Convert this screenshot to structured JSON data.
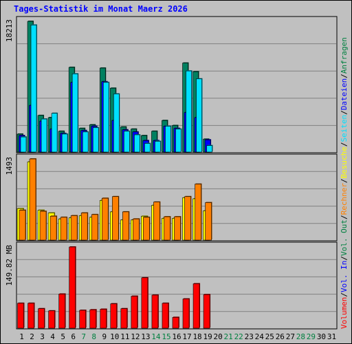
{
  "chart_data": {
    "type": "bar",
    "title": "Tages-Statistik im Monat Maerz 2026",
    "title_color": "#0000ff",
    "categories": [
      "1",
      "2",
      "3",
      "4",
      "5",
      "6",
      "7",
      "8",
      "9",
      "10",
      "11",
      "12",
      "13",
      "14",
      "15",
      "16",
      "17",
      "18",
      "19",
      "20",
      "21",
      "22",
      "23",
      "24",
      "25",
      "26",
      "27",
      "28",
      "29",
      "30",
      "31"
    ],
    "category_colors": [
      "#000000",
      "#000000",
      "#000000",
      "#000000",
      "#000000",
      "#000000",
      "#008040",
      "#008040",
      "#000000",
      "#000000",
      "#000000",
      "#000000",
      "#000000",
      "#008040",
      "#008040",
      "#000000",
      "#000000",
      "#000000",
      "#000000",
      "#000000",
      "#008040",
      "#008040",
      "#000000",
      "#000000",
      "#000000",
      "#000000",
      "#000000",
      "#008040",
      "#008040",
      "#000000",
      "#000000"
    ],
    "panels": [
      {
        "max_label": "18213",
        "ymax": 18213,
        "series": [
          {
            "name": "Anfragen",
            "color": "#008060",
            "values": [
              2500,
              18213,
              5100,
              4800,
              2900,
              11800,
              3300,
              3800,
              11700,
              8900,
              3500,
              3200,
              2300,
              2900,
              4400,
              3700,
              12400,
              11200,
              1800,
              null,
              null,
              null,
              null,
              null,
              null,
              null,
              null,
              null,
              null,
              null,
              null
            ]
          },
          {
            "name": "Dateien",
            "color": "#0000ff",
            "values": [
              2300,
              6500,
              4300,
              3200,
              2600,
              9700,
              3000,
              3600,
              9800,
              4400,
              3100,
              2800,
              1600,
              1600,
              3600,
              3300,
              5500,
              4800,
              1700,
              null,
              null,
              null,
              null,
              null,
              null,
              null,
              null,
              null,
              null,
              null,
              null
            ]
          },
          {
            "name": "Seiten",
            "color": "#00e0ff",
            "values": [
              2100,
              17700,
              4600,
              5400,
              2500,
              10900,
              2800,
              3400,
              9700,
              8100,
              2900,
              2400,
              1200,
              1500,
              3600,
              3200,
              11300,
              10200,
              900,
              null,
              null,
              null,
              null,
              null,
              null,
              null,
              null,
              null,
              null,
              null,
              null
            ]
          }
        ]
      },
      {
        "max_label": "1493",
        "ymax": 1493,
        "series": [
          {
            "name": "Besuche",
            "color": "#ffff00",
            "values": [
              580,
              1440,
              550,
              500,
              390,
              410,
              450,
              420,
              730,
              520,
              370,
              370,
              440,
              640,
              400,
              400,
              780,
              760,
              540,
              null,
              null,
              null,
              null,
              null,
              null,
              null,
              null,
              null,
              null,
              null,
              null
            ]
          },
          {
            "name": "Rechner",
            "color": "#ff8000",
            "values": [
              550,
              1493,
              530,
              440,
              420,
              450,
              500,
              470,
              770,
              800,
              520,
              390,
              420,
              700,
              430,
              430,
              800,
              1030,
              690,
              null,
              null,
              null,
              null,
              null,
              null,
              null,
              null,
              null,
              null,
              null,
              null
            ]
          }
        ]
      },
      {
        "max_label": "149.82 MB",
        "ymax": 149.82,
        "series": [
          {
            "name": "Vol. Out",
            "color": "#008040",
            "values": [
              null,
              null,
              null,
              null,
              null,
              null,
              null,
              null,
              null,
              null,
              null,
              null,
              null,
              null,
              null,
              null,
              null,
              null,
              null,
              null,
              null,
              null,
              null,
              null,
              null,
              null,
              null,
              null,
              null,
              null,
              null
            ]
          },
          {
            "name": "Vol. In",
            "color": "#0000ff",
            "values": [
              null,
              null,
              null,
              null,
              null,
              null,
              null,
              null,
              null,
              null,
              null,
              null,
              null,
              null,
              null,
              null,
              null,
              null,
              null,
              null,
              null,
              null,
              null,
              null,
              null,
              null,
              null,
              null,
              null,
              null,
              null
            ]
          },
          {
            "name": "Volumen",
            "color": "#ff0000",
            "values": [
              46,
              46,
              36,
              32,
              63,
              149.82,
              33,
              34,
              35,
              45,
              36,
              59,
              93,
              61,
              46,
              20,
              54,
              82,
              62,
              null,
              null,
              null,
              null,
              null,
              null,
              null,
              null,
              null,
              null,
              null,
              null
            ]
          }
        ]
      }
    ],
    "legend": [
      {
        "text": "Volumen",
        "color": "#ff0000"
      },
      {
        "text": "/",
        "color": "#000000"
      },
      {
        "text": "Vol. In",
        "color": "#0000ff"
      },
      {
        "text": "/",
        "color": "#000000"
      },
      {
        "text": "Vol. Out",
        "color": "#008040"
      },
      {
        "text": "/",
        "color": "#000000"
      },
      {
        "text": "Rechner",
        "color": "#ff8000"
      },
      {
        "text": "/",
        "color": "#000000"
      },
      {
        "text": "Besuche",
        "color": "#ffff00"
      },
      {
        "text": "/",
        "color": "#000000"
      },
      {
        "text": "Seiten",
        "color": "#00e0ff"
      },
      {
        "text": "/",
        "color": "#000000"
      },
      {
        "text": "Dateien",
        "color": "#0000ff"
      },
      {
        "text": "/",
        "color": "#000000"
      },
      {
        "text": "Anfragen",
        "color": "#008040"
      }
    ],
    "grid": true,
    "legend_position": "right-vertical"
  }
}
